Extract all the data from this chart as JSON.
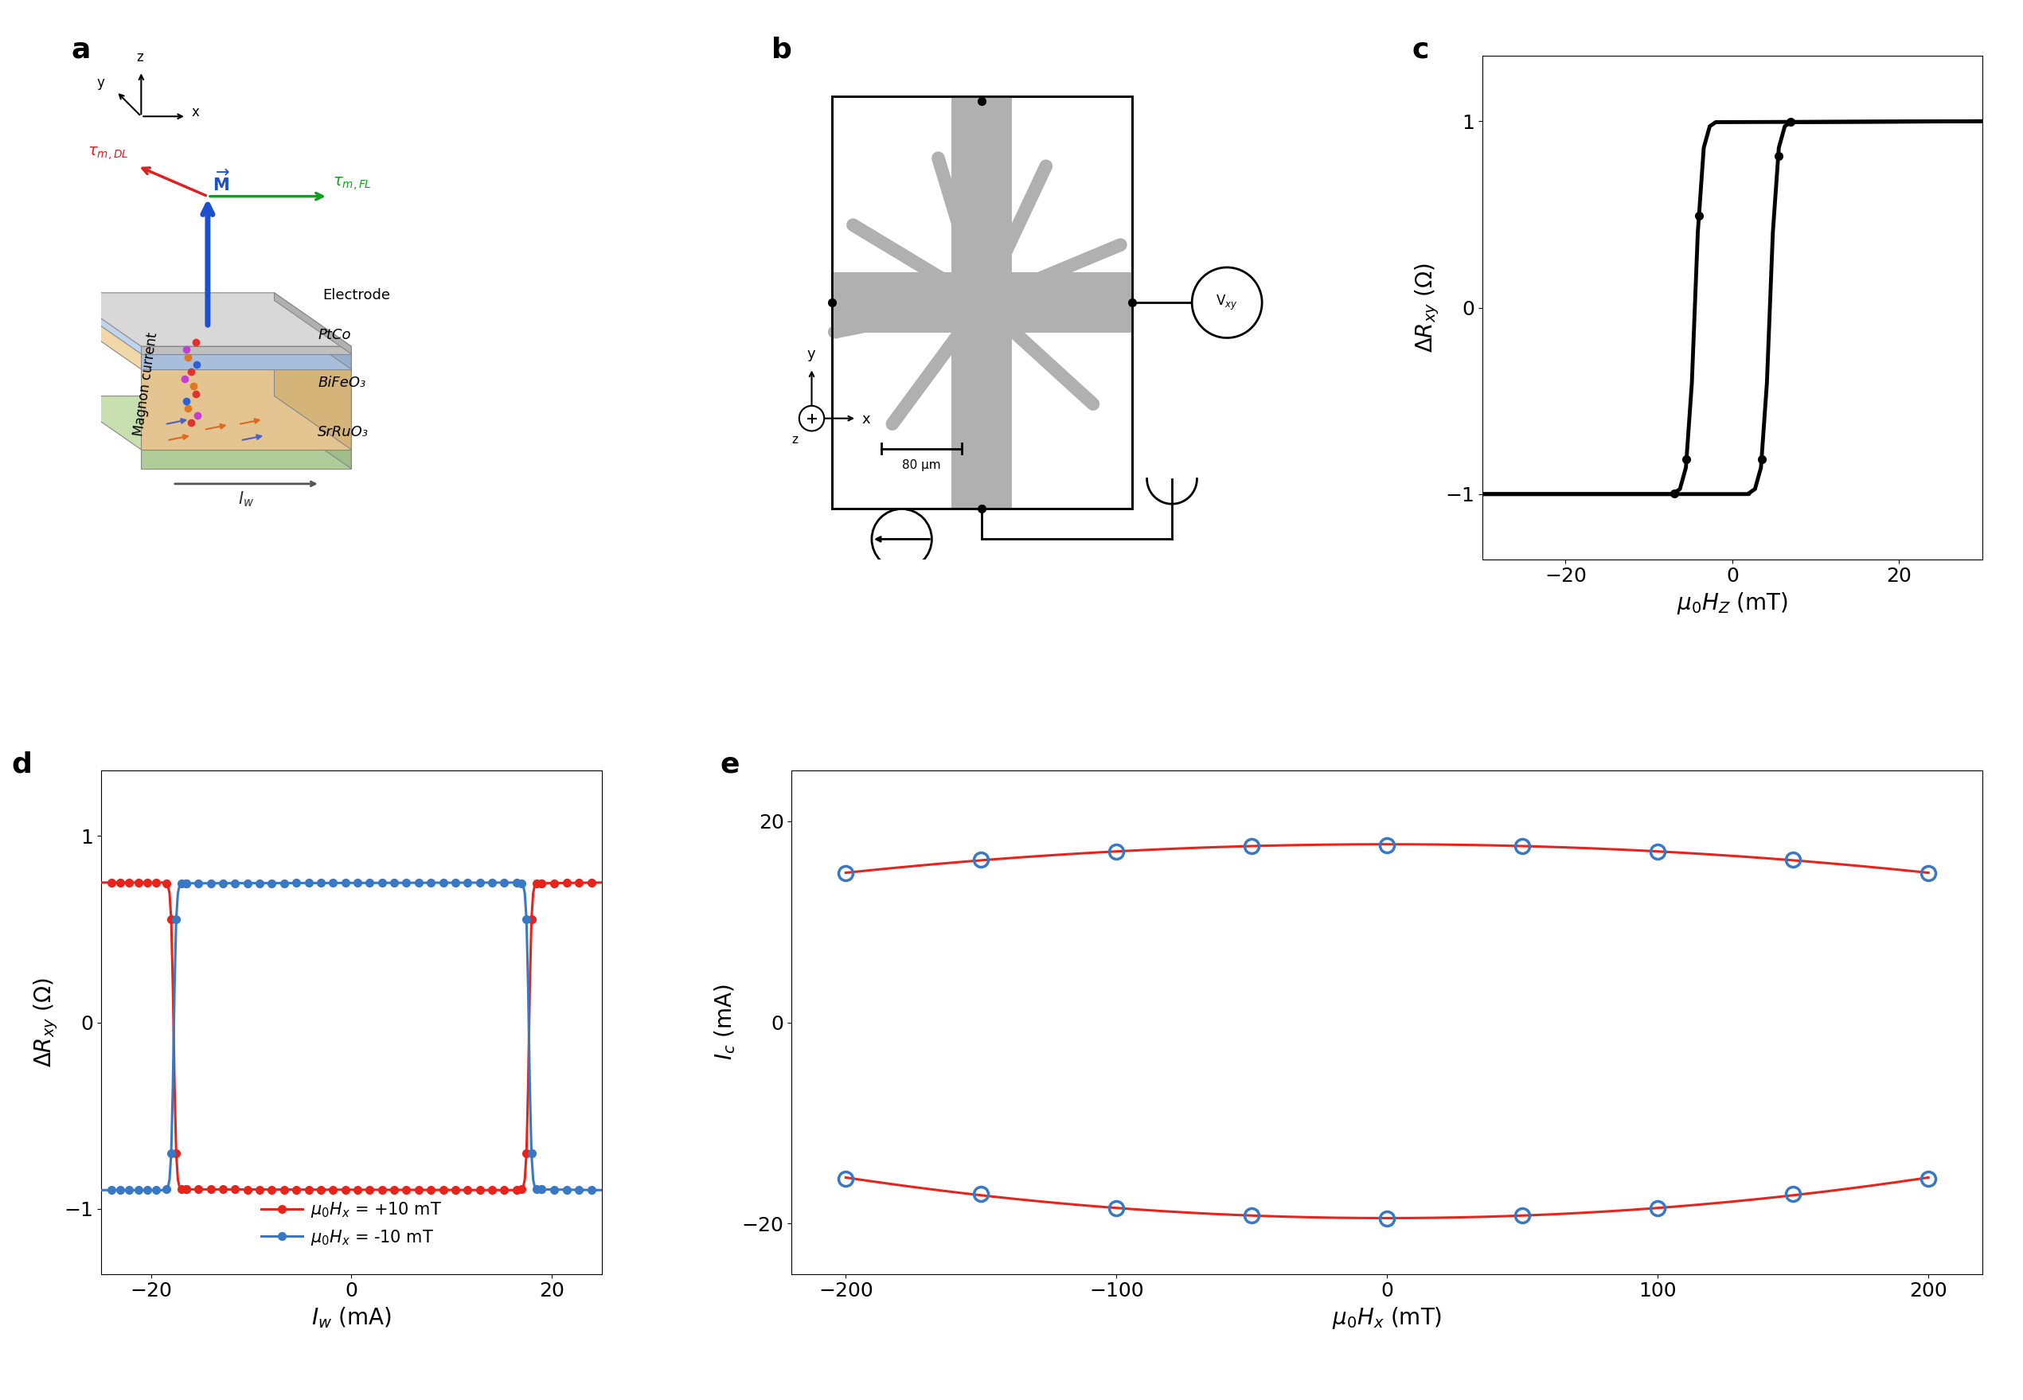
{
  "panel_c": {
    "xlabel": "$\\mu_0 H_Z$ (mT)",
    "ylabel": "$\\Delta R_{xy}$ ($\\Omega$)",
    "xlim": [
      -30,
      30
    ],
    "ylim": [
      -1.35,
      1.35
    ],
    "xticks": [
      -20,
      0,
      20
    ],
    "yticks": [
      -1,
      0,
      1
    ],
    "color": "black",
    "lw": 3.5
  },
  "panel_d": {
    "xlabel": "$I_w$ (mA)",
    "ylabel": "$\\Delta R_{xy}$ ($\\Omega$)",
    "xlim": [
      -25,
      25
    ],
    "ylim": [
      -1.35,
      1.35
    ],
    "xticks": [
      -20,
      0,
      20
    ],
    "yticks": [
      -1,
      0,
      1
    ],
    "red_label": "$\\mu_0 H_x$ = +10 mT",
    "blue_label": "$\\mu_0 H_x$ = -10 mT",
    "red_color": "#e8231b",
    "blue_color": "#3878c5",
    "lw": 2.2,
    "ms": 7
  },
  "panel_e": {
    "xlabel": "$\\mu_0 H_x$ (mT)",
    "ylabel": "$I_c$ (mA)",
    "xlim": [
      -220,
      220
    ],
    "ylim": [
      -25,
      25
    ],
    "xticks": [
      -200,
      -100,
      0,
      100,
      200
    ],
    "yticks": [
      -20,
      0,
      20
    ],
    "upper_dots_x": [
      -200,
      -150,
      -100,
      -50,
      0,
      50,
      100,
      150,
      200
    ],
    "upper_dots_y": [
      14.8,
      16.2,
      17.0,
      17.5,
      17.6,
      17.5,
      17.0,
      16.2,
      14.8
    ],
    "lower_dots_x": [
      -200,
      -150,
      -100,
      -50,
      0,
      50,
      100,
      150,
      200
    ],
    "lower_dots_y": [
      -15.5,
      -17.0,
      -18.5,
      -19.2,
      -19.5,
      -19.2,
      -18.5,
      -17.0,
      -15.5
    ],
    "dot_color": "#3878c5",
    "line_color": "#e8231b",
    "dot_ms": 13,
    "dot_lw": 2.5,
    "line_lw": 2.2
  },
  "label_fontsize": 20,
  "tick_fontsize": 18,
  "title_fontsize": 26,
  "bg_color": "#ffffff"
}
